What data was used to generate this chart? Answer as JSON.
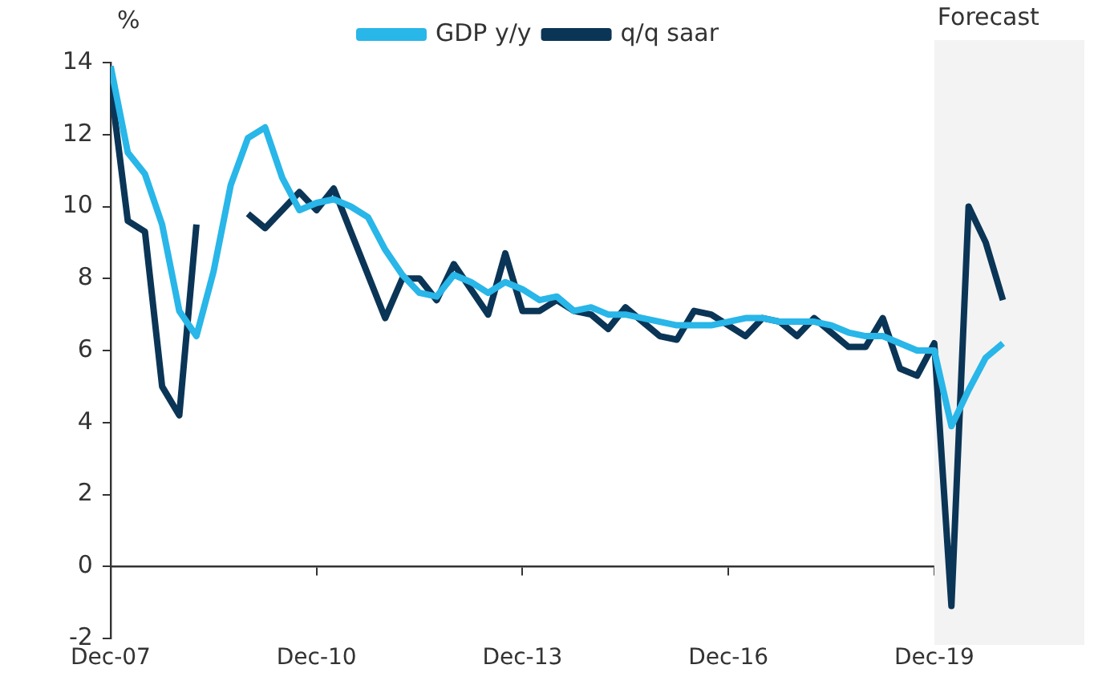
{
  "chart_data": {
    "type": "line",
    "ylabel": "%",
    "legend": "top",
    "x": [
      "2007-12",
      "2008-03",
      "2008-06",
      "2008-09",
      "2008-12",
      "2009-03",
      "2009-06",
      "2009-09",
      "2009-12",
      "2010-03",
      "2010-06",
      "2010-09",
      "2010-12",
      "2011-03",
      "2011-06",
      "2011-09",
      "2011-12",
      "2012-03",
      "2012-06",
      "2012-09",
      "2012-12",
      "2013-03",
      "2013-06",
      "2013-09",
      "2013-12",
      "2014-03",
      "2014-06",
      "2014-09",
      "2014-12",
      "2015-03",
      "2015-06",
      "2015-09",
      "2015-12",
      "2016-03",
      "2016-06",
      "2016-09",
      "2016-12",
      "2017-03",
      "2017-06",
      "2017-09",
      "2017-12",
      "2018-03",
      "2018-06",
      "2018-09",
      "2018-12",
      "2019-03",
      "2019-06",
      "2019-09",
      "2019-12",
      "2020-03",
      "2020-06",
      "2020-09",
      "2020-12"
    ],
    "series": [
      {
        "name": "GDP y/y",
        "color": "#29b6e8",
        "values": [
          13.9,
          11.5,
          10.9,
          9.5,
          7.1,
          6.4,
          8.2,
          10.6,
          11.9,
          12.2,
          10.8,
          9.9,
          10.1,
          10.2,
          10.0,
          9.7,
          8.8,
          8.1,
          7.6,
          7.5,
          8.1,
          7.9,
          7.6,
          7.9,
          7.7,
          7.4,
          7.5,
          7.1,
          7.2,
          7.0,
          7.0,
          6.9,
          6.8,
          6.7,
          6.7,
          6.7,
          6.8,
          6.9,
          6.9,
          6.8,
          6.8,
          6.8,
          6.7,
          6.5,
          6.4,
          6.4,
          6.2,
          6.0,
          6.0,
          3.9,
          4.9,
          5.8,
          6.2
        ]
      },
      {
        "name": "q/q saar",
        "color": "#0b3556",
        "values": [
          13.4,
          9.6,
          9.3,
          5.0,
          4.2,
          9.5,
          null,
          null,
          9.8,
          9.4,
          9.9,
          10.4,
          9.9,
          10.5,
          9.3,
          8.1,
          6.9,
          8.0,
          8.0,
          7.4,
          8.4,
          7.7,
          7.0,
          8.7,
          7.1,
          7.1,
          7.4,
          7.1,
          7.0,
          6.6,
          7.2,
          6.8,
          6.4,
          6.3,
          7.1,
          7.0,
          6.7,
          6.4,
          6.9,
          6.8,
          6.4,
          6.9,
          6.5,
          6.1,
          6.1,
          6.9,
          5.5,
          5.3,
          6.2,
          -1.1,
          10.0,
          9.0,
          7.4
        ]
      }
    ],
    "xlim": [
      "2007-12",
      "2021-12"
    ],
    "xticks": [
      {
        "value": "2007-12",
        "label": "Dec-07"
      },
      {
        "value": "2010-12",
        "label": "Dec-10"
      },
      {
        "value": "2013-12",
        "label": "Dec-13"
      },
      {
        "value": "2016-12",
        "label": "Dec-16"
      },
      {
        "value": "2019-12",
        "label": "Dec-19"
      }
    ],
    "ylim": [
      -2,
      14
    ],
    "yticks": [
      -2,
      0,
      2,
      4,
      6,
      8,
      10,
      12,
      14
    ],
    "bands": [
      {
        "axis": "x",
        "from": "2019-12",
        "to": "2021-12",
        "label": "Forecast",
        "color": "#f3f3f3"
      }
    ]
  }
}
